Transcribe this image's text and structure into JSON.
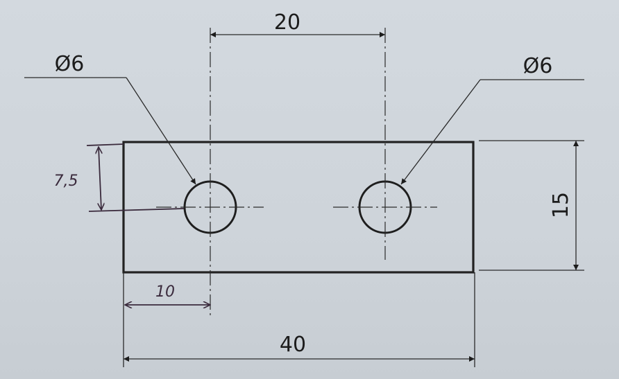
{
  "drawing": {
    "dim_top": "20",
    "dim_bottom": "40",
    "dim_right": "15",
    "dim_left_height": "7,5",
    "dim_left_offset": "10",
    "hole_left_label": "Ø6",
    "hole_right_label": "Ø6"
  }
}
